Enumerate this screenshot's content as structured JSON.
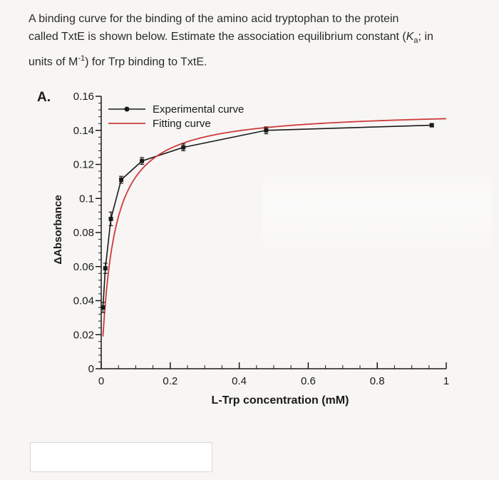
{
  "question": {
    "line1": "A binding curve for the binding of the amino acid tryptophan to the protein",
    "line2_a": "called TxtE is shown below. Estimate the association equilibrium constant (",
    "line2_k": "K",
    "line2_sub": "a",
    "line2_b": "; in",
    "line3_a": "units of M",
    "line3_sup": "-1",
    "line3_b": ") for Trp binding to TxtE."
  },
  "panel_label": "A.",
  "chart_data": {
    "type": "line",
    "xlabel": "L-Trp concentration (mM)",
    "ylabel": "ΔAbsorbance",
    "xlim": [
      0,
      1
    ],
    "ylim": [
      0,
      0.16
    ],
    "x_ticks": [
      "0",
      "0.2",
      "0.4",
      "0.6",
      "0.8",
      "1"
    ],
    "x_tick_values": [
      0,
      0.2,
      0.4,
      0.6,
      0.8,
      1.0
    ],
    "y_ticks": [
      "0",
      "0.02",
      "0.04",
      "0.06",
      "0.08",
      "0.1",
      "0.12",
      "0.14",
      "0.16"
    ],
    "y_tick_values": [
      0,
      0.02,
      0.04,
      0.06,
      0.08,
      0.1,
      0.12,
      0.14,
      0.16
    ],
    "legend_position": "top-left",
    "series": [
      {
        "name": "Experimental curve",
        "color": "#1a1a1a",
        "x": [
          0.005,
          0.012,
          0.028,
          0.058,
          0.118,
          0.238,
          0.478,
          0.958
        ],
        "y": [
          0.036,
          0.059,
          0.088,
          0.111,
          0.122,
          0.13,
          0.14,
          0.143
        ],
        "error": [
          0.003,
          0.003,
          0.004,
          0.002,
          0.002,
          0.002,
          0.002,
          0.001
        ]
      },
      {
        "name": "Fitting curve",
        "color": "#cf3a3a",
        "model": "hyperbolic",
        "Bmax": 0.152,
        "Kd": 0.035
      }
    ]
  },
  "answer_input": {
    "value": ""
  }
}
